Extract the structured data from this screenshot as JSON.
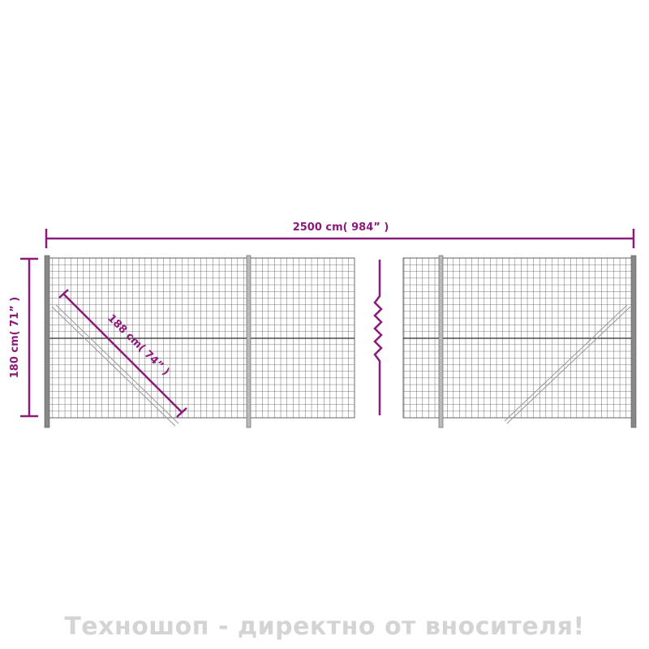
{
  "colors": {
    "dimension": "#8b1a7a",
    "mesh": "#4a4a4a",
    "watermark": "#d4d4d4"
  },
  "dimensions": {
    "length": "2500 cm( 984”  )",
    "height": "180 cm( 71”  )",
    "diagonal": "188 cm( 74”  )"
  },
  "watermark": "Техношоп - директно от вносителя!"
}
